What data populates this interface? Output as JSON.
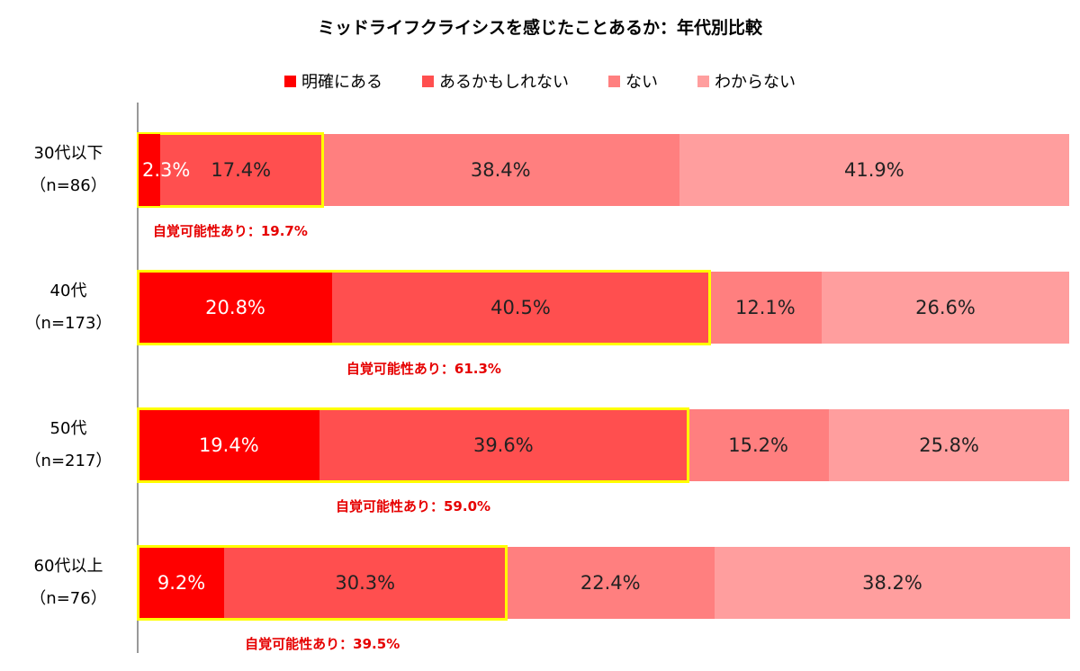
{
  "chart_data": {
    "type": "bar",
    "stacked": true,
    "orientation": "horizontal",
    "title": "ミッドライフクライシスを感じたことあるか：年代別比較",
    "categories": [
      "30代以下",
      "40代",
      "50代",
      "60代以上"
    ],
    "sample_sizes": [
      "（n=86）",
      "（n=173）",
      "（n=217）",
      "（n=76）"
    ],
    "series": [
      {
        "name": "明確にある",
        "color": "#ff0000",
        "values": [
          2.3,
          20.8,
          19.4,
          9.2
        ],
        "labels": [
          "2.3%",
          "20.8%",
          "19.4%",
          "9.2%"
        ]
      },
      {
        "name": "あるかもしれない",
        "color": "#ff4f4f",
        "values": [
          17.4,
          40.5,
          39.6,
          30.3
        ],
        "labels": [
          "17.4%",
          "40.5%",
          "39.6%",
          "30.3%"
        ]
      },
      {
        "name": "ない",
        "color": "#ff7f7f",
        "values": [
          38.4,
          12.1,
          15.2,
          22.4
        ],
        "labels": [
          "38.4%",
          "12.1%",
          "15.2%",
          "22.4%"
        ]
      },
      {
        "name": "わからない",
        "color": "#ff9e9e",
        "values": [
          41.9,
          26.6,
          25.8,
          38.2
        ],
        "labels": [
          "41.9%",
          "26.6%",
          "25.8%",
          "38.2%"
        ]
      }
    ],
    "annotations": [
      "自覚可能性あり：19.7%",
      "自覚可能性あり：61.3%",
      "自覚可能性あり：59.0%",
      "自覚可能性あり：39.5%"
    ],
    "highlight_color": "#ffff00",
    "xlim": [
      0,
      100
    ],
    "legend_position": "top"
  }
}
